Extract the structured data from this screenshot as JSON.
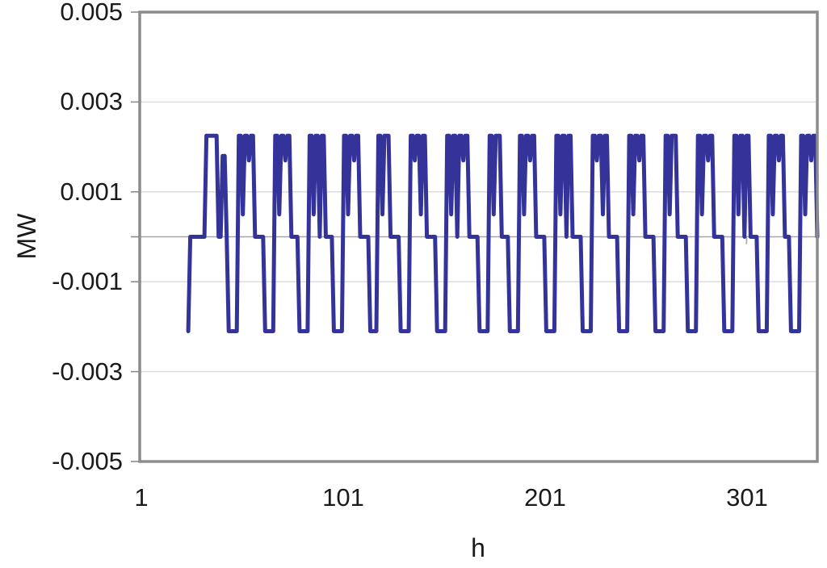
{
  "chart_data": {
    "type": "line",
    "title": "",
    "xlabel": "h",
    "ylabel": "MW",
    "xlim": [
      1,
      336
    ],
    "ylim": [
      -0.005,
      0.005
    ],
    "grid": true,
    "legend_position": "none",
    "x_ticks": [
      1,
      101,
      201,
      301
    ],
    "x_tick_labels": [
      "1",
      "101",
      "201",
      "301"
    ],
    "y_ticks": [
      0.005,
      0.003,
      0.001,
      -0.001,
      -0.003,
      -0.005
    ],
    "y_tick_labels": [
      "0.005",
      "0.003",
      "0.001",
      "-0.001",
      "-0.003",
      "-0.005"
    ],
    "gridline_values": [
      0.003,
      0.001,
      -0.001,
      -0.003
    ],
    "zero_axis_value": 0,
    "colors": {
      "series": "#333399",
      "gridline": "#d9d9d9",
      "zero_axis": "#a6a6a6",
      "border": "#8c8c8c",
      "text": "#1a1a1a",
      "background": "#ffffff"
    },
    "series": [
      {
        "name": "MW",
        "color": "#333399",
        "x_start": 25,
        "x_step": 1,
        "values": [
          -0.0021,
          0,
          0,
          0,
          0,
          0,
          0,
          0,
          0,
          0.00225,
          0.00225,
          0.00225,
          0.00225,
          0.00225,
          0.00225,
          0,
          0,
          0.0018,
          0.0018,
          0,
          -0.0021,
          -0.0021,
          -0.0021,
          -0.0021,
          -0.0021,
          0.00225,
          0.00225,
          0.0005,
          0.00225,
          0.00225,
          0.0017,
          0.00225,
          0.00225,
          0,
          0,
          0,
          0,
          0,
          -0.0021,
          -0.0021,
          -0.0021,
          -0.0021,
          -0.0021,
          0.00225,
          0.00225,
          0.0005,
          0.00225,
          0.00225,
          0.0017,
          0.00225,
          0.00225,
          0,
          0,
          0,
          0,
          -0.0021,
          -0.0021,
          -0.0021,
          -0.0021,
          -0.0021,
          0.00225,
          0.00225,
          0.0005,
          0.00225,
          0.00225,
          0,
          0.00225,
          0.00225,
          0,
          0,
          0,
          0,
          -0.0021,
          -0.0021,
          -0.0021,
          -0.0021,
          -0.0021,
          0.00225,
          0.00225,
          0.0005,
          0.00225,
          0.00225,
          0.0017,
          0.00225,
          0.00225,
          0,
          0,
          0,
          0,
          0,
          -0.0021,
          -0.0021,
          -0.0021,
          -0.0021,
          0.00225,
          0.00225,
          0.0005,
          0.00225,
          0.00225,
          0.00225,
          0,
          0,
          0,
          0,
          0,
          -0.0021,
          -0.0021,
          -0.0021,
          -0.0021,
          -0.0021,
          0.00225,
          0.00225,
          0.0017,
          0.00225,
          0.00225,
          0.0005,
          0.00225,
          0.00225,
          0,
          0,
          0,
          0,
          0,
          -0.0021,
          -0.0021,
          -0.0021,
          -0.0021,
          -0.0021,
          0.00225,
          0.00225,
          0.0005,
          0.00225,
          0.00225,
          0,
          0.00225,
          0.00225,
          0.0017,
          0.00225,
          0.00225,
          0,
          0,
          0,
          0,
          0,
          -0.0021,
          -0.0021,
          -0.0021,
          -0.0021,
          -0.0021,
          0.00225,
          0.00225,
          0.0005,
          0.00225,
          0.00225,
          0.00225,
          0,
          0,
          0,
          0,
          -0.0021,
          -0.0021,
          -0.0021,
          -0.0021,
          -0.0021,
          0.00225,
          0.00225,
          0.0005,
          0.00225,
          0.00225,
          0.0017,
          0.00225,
          0.00225,
          0,
          0,
          0,
          0,
          0,
          -0.0021,
          -0.0021,
          -0.0021,
          -0.0021,
          -0.0021,
          0.00225,
          0.00225,
          0.0005,
          0.00225,
          0.00225,
          0,
          0.00225,
          0.00225,
          0,
          0,
          0,
          0,
          0,
          -0.0021,
          -0.0021,
          -0.0021,
          -0.0021,
          -0.0021,
          0.00225,
          0.00225,
          0.0017,
          0.00225,
          0.00225,
          0.0005,
          0.00225,
          0.00225,
          0,
          0,
          0,
          0,
          0,
          -0.0021,
          -0.0021,
          -0.0021,
          -0.0021,
          -0.0021,
          0.00225,
          0.00225,
          0.0005,
          0.00225,
          0.00225,
          0.0017,
          0.00225,
          0.00225,
          0,
          0,
          0,
          0,
          0,
          -0.0021,
          -0.0021,
          -0.0021,
          -0.0021,
          -0.0021,
          0.00225,
          0.00225,
          0.0005,
          0.00225,
          0.00225,
          0.00225,
          0,
          0,
          0,
          0,
          0,
          -0.0021,
          -0.0021,
          -0.0021,
          -0.0021,
          -0.0021,
          0.00225,
          0.00225,
          0.0005,
          0.00225,
          0.00225,
          0.0017,
          0.00225,
          0.00225,
          0,
          0,
          0,
          0,
          0,
          -0.0021,
          -0.0021,
          -0.0021,
          -0.0021,
          -0.0021,
          0.00225,
          0.00225,
          0.0005,
          0.00225,
          0.00225,
          0,
          0.00225,
          0.00225,
          0,
          0,
          0,
          0,
          -0.0021,
          -0.0021,
          -0.0021,
          -0.0021,
          -0.0021,
          0.00225,
          0.00225,
          0.0005,
          0.00225,
          0.00225,
          0.0017,
          0.00225,
          0.00225,
          0,
          0,
          0,
          -0.0021,
          -0.0021,
          -0.0021,
          -0.0021,
          -0.0021,
          0.00225,
          0.00225,
          0.0005,
          0.00225,
          0.00225,
          0.0017,
          0.00225,
          0.00225,
          0
        ]
      }
    ]
  }
}
